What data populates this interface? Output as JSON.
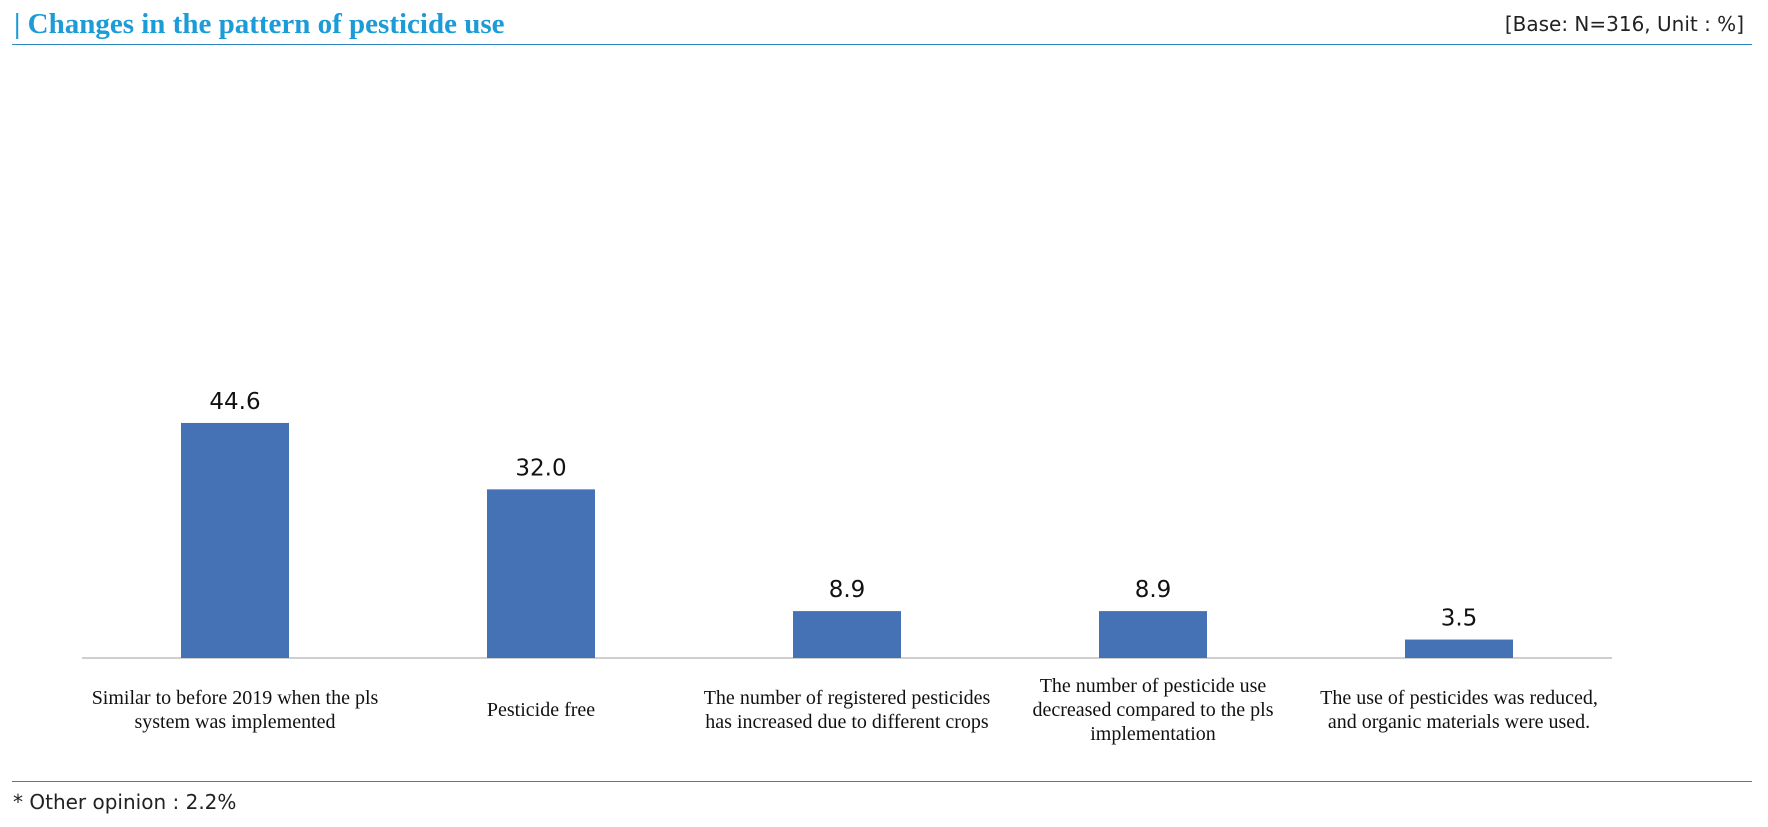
{
  "header": {
    "title": "| Changes in the pattern of pesticide use",
    "base_note": "[Base: N=316, Unit : %]"
  },
  "footnote": "* Other opinion : 2.2%",
  "colors": {
    "title": "#1b9bd7",
    "bar": "#4472b4",
    "rule": "#2e86c1",
    "axis": "#bfbfbf"
  },
  "chart_data": {
    "type": "bar",
    "categories": [
      [
        "Similar  to before 2019 when the pls",
        "system was implemented"
      ],
      [
        "Pesticide free"
      ],
      [
        "The number of registered pesticides",
        "has increased due to different crops"
      ],
      [
        "The number of pesticide use",
        "decreased compared to the pls",
        "implementation"
      ],
      [
        "The use of pesticides was reduced,",
        "and organic materials  were used."
      ]
    ],
    "values": [
      44.6,
      32.0,
      8.9,
      8.9,
      3.5
    ],
    "data_labels": [
      "44.6",
      "32.0",
      "8.9",
      "8.9",
      "3.5"
    ],
    "ylim": [
      0,
      100
    ],
    "grid": false,
    "legend": "none",
    "title": "Changes in the pattern of pesticide use",
    "xlabel": "",
    "ylabel": ""
  }
}
